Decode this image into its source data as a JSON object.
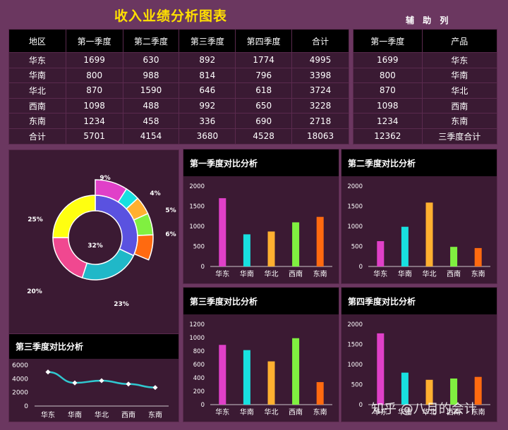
{
  "title": "收入业绩分析图表",
  "aux_title": "辅 助 列",
  "main_table": {
    "headers": [
      "地区",
      "第一季度",
      "第二季度",
      "第三季度",
      "第四季度",
      "合计"
    ],
    "rows": [
      [
        "华东",
        "1699",
        "630",
        "892",
        "1774",
        "4995"
      ],
      [
        "华南",
        "800",
        "988",
        "814",
        "796",
        "3398"
      ],
      [
        "华北",
        "870",
        "1590",
        "646",
        "618",
        "3724"
      ],
      [
        "西南",
        "1098",
        "488",
        "992",
        "650",
        "3228"
      ],
      [
        "东南",
        "1234",
        "458",
        "336",
        "690",
        "2718"
      ],
      [
        "合计",
        "5701",
        "4154",
        "3680",
        "4528",
        "18063"
      ]
    ]
  },
  "aux_table": {
    "headers": [
      "第一季度",
      "产品"
    ],
    "rows": [
      [
        "1699",
        "华东"
      ],
      [
        "800",
        "华南"
      ],
      [
        "870",
        "华北"
      ],
      [
        "1098",
        "西南"
      ],
      [
        "1234",
        "东南"
      ],
      [
        "12362",
        "三季度合计"
      ]
    ]
  },
  "colors": {
    "title": "#ffe000",
    "bars": [
      "#e040c8",
      "#18e0e0",
      "#ffb030",
      "#80f040",
      "#ff6a10"
    ],
    "line": "#30c8d0"
  },
  "watermark": "知乎 @八月的会计",
  "chart_data": [
    {
      "type": "pie",
      "subtype": "donut-of-pie",
      "inner_ring": {
        "slices": [
          {
            "label": "32%",
            "value": 32,
            "color": "#5a52e0"
          },
          {
            "label": "23%",
            "value": 23,
            "color": "#20b8c8"
          },
          {
            "label": "20%",
            "value": 20,
            "color": "#f04890"
          },
          {
            "label": "25%",
            "value": 25,
            "color": "#ffff10"
          }
        ]
      },
      "outer_ring": {
        "slices": [
          {
            "label": "9%",
            "value": 9,
            "color": "#e040c8"
          },
          {
            "label": "4%",
            "value": 4,
            "color": "#18e0e0"
          },
          {
            "label": "5%",
            "value": 5,
            "color": "#ffb030"
          },
          {
            "label": "6%",
            "value": 6,
            "color": "#80f040"
          },
          {
            "label": "",
            "value": 7,
            "color": "#ff6a10"
          },
          {
            "label": "23%",
            "value": 23,
            "color": "#20b8c8"
          },
          {
            "label": "20%",
            "value": 20,
            "color": "#f04890"
          },
          {
            "label": "25%",
            "value": 25,
            "color": "#ffff10"
          }
        ]
      }
    },
    {
      "type": "line",
      "title": "第三季度对比分析",
      "categories": [
        "华东",
        "华南",
        "华北",
        "西南",
        "东南"
      ],
      "values": [
        4995,
        3398,
        3724,
        3228,
        2718
      ],
      "ylim": [
        0,
        6000
      ],
      "yticks": [
        0,
        2000,
        4000,
        6000
      ]
    },
    {
      "type": "bar",
      "title": "第一季度对比分析",
      "categories": [
        "华东",
        "华南",
        "华北",
        "西南",
        "东南"
      ],
      "values": [
        1699,
        800,
        870,
        1098,
        1234
      ],
      "ylim": [
        0,
        2000
      ],
      "yticks": [
        0,
        500,
        1000,
        1500,
        2000
      ]
    },
    {
      "type": "bar",
      "title": "第二季度对比分析",
      "categories": [
        "华东",
        "华南",
        "华北",
        "西南",
        "东南"
      ],
      "values": [
        630,
        988,
        1590,
        488,
        458
      ],
      "ylim": [
        0,
        2000
      ],
      "yticks": [
        0,
        500,
        1000,
        1500,
        2000
      ]
    },
    {
      "type": "bar",
      "title": "第三季度对比分析",
      "categories": [
        "华东",
        "华南",
        "华北",
        "西南",
        "东南"
      ],
      "values": [
        892,
        814,
        646,
        992,
        336
      ],
      "ylim": [
        0,
        1200
      ],
      "yticks": [
        0,
        200,
        400,
        600,
        800,
        1000,
        1200
      ]
    },
    {
      "type": "bar",
      "title": "第四季度对比分析",
      "categories": [
        "华东",
        "华南",
        "华北",
        "西南",
        "东南"
      ],
      "values": [
        1774,
        796,
        618,
        650,
        690
      ],
      "ylim": [
        0,
        2000
      ],
      "yticks": [
        0,
        500,
        1000,
        1500,
        2000
      ]
    }
  ]
}
